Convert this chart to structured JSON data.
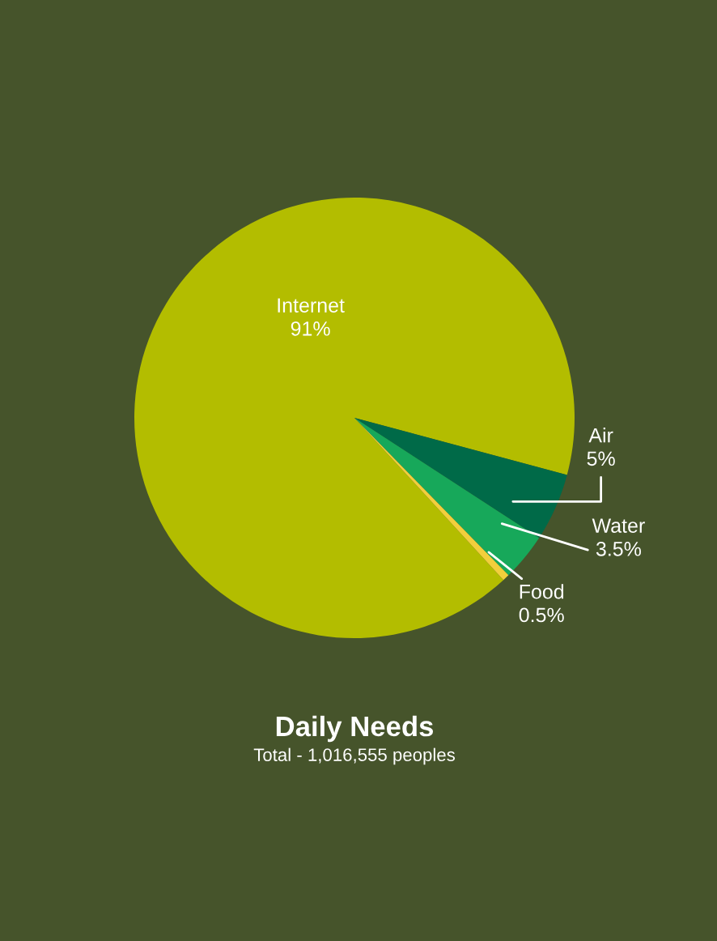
{
  "chart_data": {
    "type": "pie",
    "title": "Daily Needs",
    "subtitle": "Total - 1,016,555 peoples",
    "categories": [
      "Internet",
      "Air",
      "Water",
      "Food"
    ],
    "values": [
      91,
      5,
      3.5,
      0.5
    ],
    "value_labels": [
      "91%",
      "5%",
      "3.5%",
      "0.5%"
    ],
    "colors": [
      "#b3bd00",
      "#006a48",
      "#17a85a",
      "#f2cf3c"
    ],
    "legend": false
  }
}
